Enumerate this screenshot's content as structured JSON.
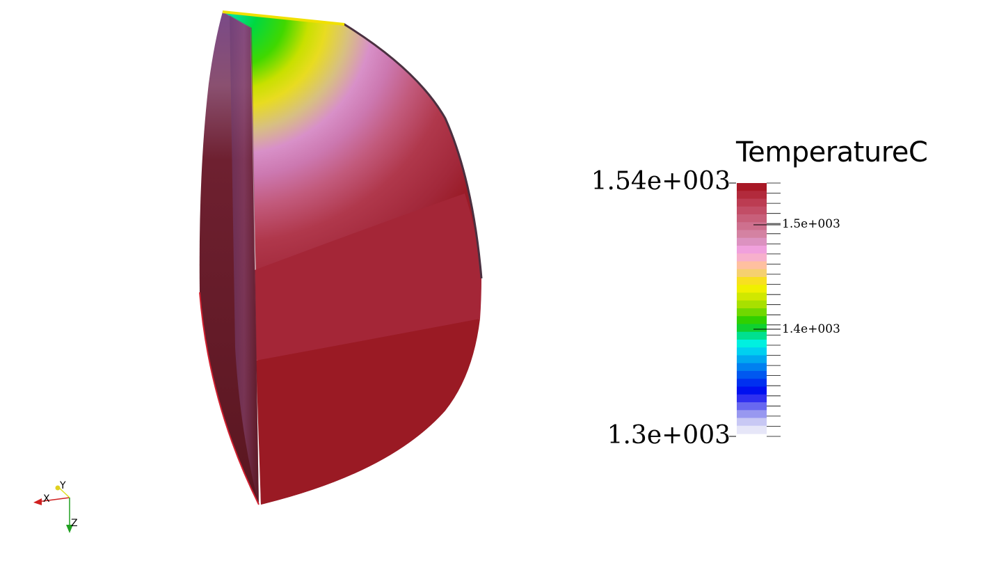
{
  "colorbar": {
    "title": "TemperatureC",
    "max_label": "1.54e+003",
    "min_label": "1.3e+003",
    "tick_labels": [
      "1.5e+003",
      "1.4e+003"
    ],
    "range": [
      1300,
      1540
    ],
    "bands_top_to_bottom": [
      "#a81826",
      "#b22a3c",
      "#bc3c52",
      "#c24d66",
      "#c85f7a",
      "#ce708e",
      "#d482a2",
      "#dc92c0",
      "#f0a0dc",
      "#f7b0cc",
      "#ffc0a0",
      "#f5d070",
      "#f8e020",
      "#f0f000",
      "#d0e800",
      "#a8e000",
      "#70d800",
      "#30d000",
      "#10d030",
      "#00e090",
      "#00f0e0",
      "#00d0f0",
      "#00a8f0",
      "#0080f0",
      "#0058f0",
      "#0030f0",
      "#0010f0",
      "#3030f0",
      "#6868f0",
      "#9898f0",
      "#c8c8f4",
      "#e6e6f8"
    ],
    "colors": {
      "tick_mark": "#000000"
    }
  },
  "orientation_axes": {
    "labels": [
      "X",
      "Y",
      "Z"
    ],
    "colors": {
      "x": "#d02020",
      "y": "#e0e020",
      "z": "#20a020"
    }
  },
  "model": {
    "colors": {
      "core_red": "#9a1a24",
      "dark_side": "#5a1620",
      "top_green": "#20d020",
      "top_yellow": "#e8e000",
      "top_pink": "#d890c8"
    }
  }
}
